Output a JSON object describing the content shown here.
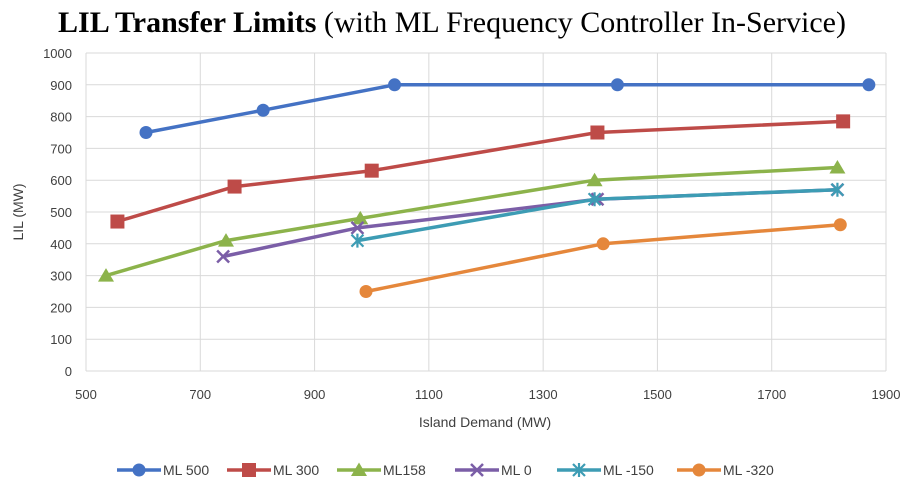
{
  "chart_data": {
    "type": "line",
    "title_bold": "LIL Transfer Limits",
    "title_rest": " (with ML Frequency Controller In-Service)",
    "xlabel": "Island Demand (MW)",
    "ylabel": "LIL (MW)",
    "xlim": [
      500,
      1900
    ],
    "ylim": [
      0,
      1000
    ],
    "xticks": [
      500,
      700,
      900,
      1100,
      1300,
      1500,
      1700,
      1900
    ],
    "yticks": [
      0,
      100,
      200,
      300,
      400,
      500,
      600,
      700,
      800,
      900,
      1000
    ],
    "grid": true,
    "legend_position": "bottom",
    "series": [
      {
        "name": "ML 500",
        "color": "#4472c4",
        "marker": "circle",
        "points": [
          [
            605,
            750
          ],
          [
            810,
            820
          ],
          [
            1040,
            900
          ],
          [
            1430,
            900
          ],
          [
            1870,
            900
          ]
        ]
      },
      {
        "name": "ML 300",
        "color": "#be4b48",
        "marker": "square",
        "points": [
          [
            555,
            470
          ],
          [
            760,
            580
          ],
          [
            1000,
            630
          ],
          [
            1395,
            750
          ],
          [
            1825,
            785
          ]
        ]
      },
      {
        "name": "ML158",
        "color": "#8cb34b",
        "marker": "triangle",
        "points": [
          [
            535,
            300
          ],
          [
            745,
            410
          ],
          [
            980,
            480
          ],
          [
            1390,
            600
          ],
          [
            1815,
            640
          ]
        ]
      },
      {
        "name": "ML 0",
        "color": "#7b5ea7",
        "marker": "x",
        "points": [
          [
            740,
            360
          ],
          [
            975,
            450
          ],
          [
            1395,
            540
          ],
          [
            1815,
            570
          ]
        ]
      },
      {
        "name": "ML -150",
        "color": "#3d9cb4",
        "marker": "star",
        "points": [
          [
            975,
            410
          ],
          [
            1390,
            540
          ],
          [
            1815,
            570
          ]
        ]
      },
      {
        "name": "ML -320",
        "color": "#e5873b",
        "marker": "circle",
        "points": [
          [
            990,
            250
          ],
          [
            1405,
            400
          ],
          [
            1820,
            460
          ]
        ]
      }
    ]
  }
}
